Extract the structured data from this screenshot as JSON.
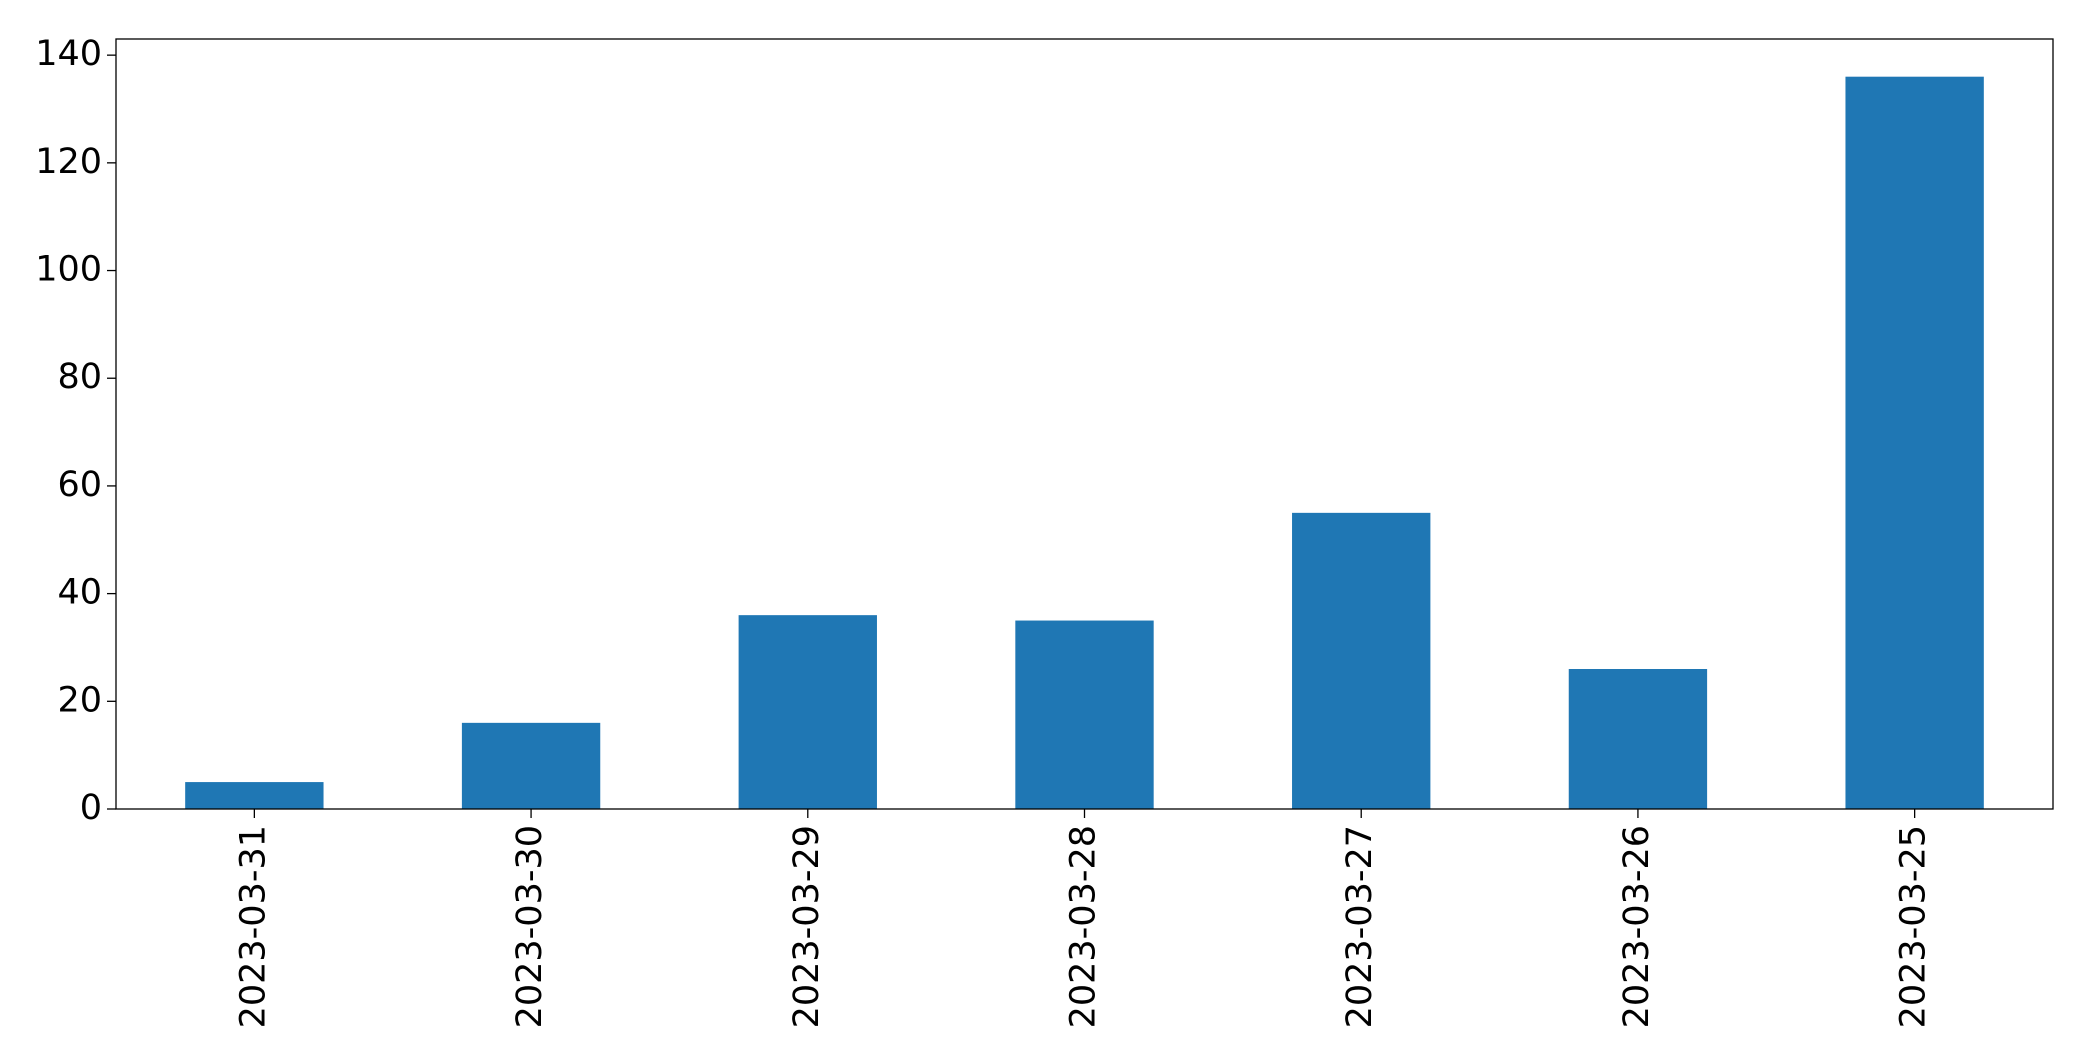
{
  "chart_data": {
    "type": "bar",
    "categories": [
      "2023-03-31",
      "2023-03-30",
      "2023-03-29",
      "2023-03-28",
      "2023-03-27",
      "2023-03-26",
      "2023-03-25"
    ],
    "values": [
      5,
      16,
      36,
      35,
      55,
      26,
      136
    ],
    "color": "#1f77b4",
    "ylim": [
      0,
      143
    ],
    "yticks": [
      0,
      20,
      40,
      60,
      80,
      100,
      120,
      140
    ],
    "grid": false
  }
}
